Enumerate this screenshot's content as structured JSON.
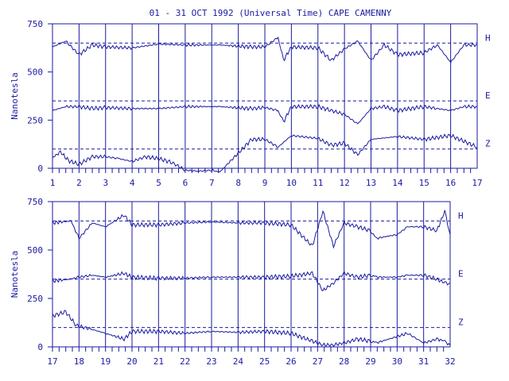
{
  "chart_data": [
    {
      "type": "line",
      "title": "01 - 31 OCT 1992 (Universal Time) CAPE CAMENNY",
      "ylabel": "Nanotesla",
      "xlabel": "",
      "xlim": [
        1,
        17
      ],
      "ylim": [
        0,
        750
      ],
      "y_ticks": [
        0,
        250,
        500,
        750
      ],
      "x_ticks": [
        "1",
        "2",
        "3",
        "4",
        "5",
        "6",
        "7",
        "8",
        "9",
        "10",
        "11",
        "12",
        "13",
        "14",
        "15",
        "16",
        "17"
      ],
      "grid": "vertical day lines",
      "reference_lines": [
        {
          "component": "H",
          "value": 650
        },
        {
          "component": "E",
          "value": 350
        },
        {
          "component": "Z",
          "value": 100
        }
      ],
      "series": [
        {
          "name": "H",
          "x": [
            1,
            1.5,
            2,
            2.5,
            3,
            4,
            5,
            6,
            7.3,
            8.5,
            9,
            9.5,
            9.7,
            10,
            11,
            11.5,
            12,
            12.5,
            13,
            13.5,
            14,
            15,
            15.5,
            16,
            16.5,
            17
          ],
          "y": [
            630,
            660,
            590,
            640,
            630,
            625,
            645,
            640,
            640,
            630,
            630,
            680,
            560,
            630,
            625,
            560,
            620,
            660,
            560,
            640,
            590,
            600,
            640,
            550,
            640,
            640
          ]
        },
        {
          "name": "E",
          "x": [
            1,
            1.5,
            2,
            2.5,
            3,
            4,
            5,
            6,
            7.3,
            8.5,
            9,
            9.5,
            9.7,
            10,
            11,
            11.5,
            12,
            12.5,
            13,
            13.5,
            14,
            15,
            15.5,
            16,
            16.5,
            17
          ],
          "y": [
            300,
            320,
            320,
            310,
            315,
            310,
            310,
            320,
            320,
            310,
            315,
            300,
            240,
            320,
            320,
            300,
            280,
            230,
            310,
            320,
            300,
            320,
            310,
            300,
            320,
            320
          ]
        },
        {
          "name": "Z",
          "x": [
            1,
            1.3,
            1.6,
            2,
            2.5,
            3,
            3.5,
            4,
            4.5,
            5,
            5.5,
            6,
            6.5,
            7,
            7.3,
            8.5,
            9,
            9.5,
            10,
            11,
            11.5,
            12,
            12.5,
            13,
            14,
            15,
            16,
            17
          ],
          "y": [
            55,
            85,
            40,
            20,
            60,
            60,
            50,
            35,
            60,
            50,
            30,
            -10,
            -15,
            -10,
            -20,
            150,
            150,
            110,
            170,
            155,
            120,
            130,
            70,
            150,
            165,
            150,
            170,
            110
          ]
        }
      ]
    },
    {
      "type": "line",
      "title": "",
      "ylabel": "Nanotesla",
      "xlabel": "",
      "xlim": [
        17,
        32
      ],
      "ylim": [
        0,
        750
      ],
      "y_ticks": [
        0,
        250,
        500,
        750
      ],
      "x_ticks": [
        "17",
        "18",
        "19",
        "20",
        "21",
        "22",
        "23",
        "24",
        "25",
        "26",
        "27",
        "28",
        "29",
        "30",
        "31",
        "32"
      ],
      "grid": "vertical day lines",
      "reference_lines": [
        {
          "component": "H",
          "value": 650
        },
        {
          "component": "E",
          "value": 350
        },
        {
          "component": "Z",
          "value": 100
        }
      ],
      "series": [
        {
          "name": "H",
          "x": [
            17,
            17.7,
            18,
            18.5,
            19,
            19.7,
            20,
            21,
            22,
            23,
            24,
            25,
            26,
            26.8,
            27.2,
            27.6,
            28,
            28.5,
            29,
            29.2,
            30,
            30.4,
            31,
            31.5,
            31.8,
            32
          ],
          "y": [
            640,
            650,
            560,
            640,
            620,
            680,
            630,
            630,
            640,
            645,
            640,
            640,
            630,
            520,
            700,
            520,
            640,
            620,
            600,
            560,
            580,
            620,
            620,
            600,
            700,
            580
          ]
        },
        {
          "name": "E",
          "x": [
            17,
            17.7,
            18,
            18.5,
            19,
            19.7,
            20,
            21,
            22,
            23,
            24,
            25,
            26,
            26.8,
            27.2,
            27.6,
            28,
            28.5,
            29,
            29.2,
            30,
            30.4,
            31,
            31.5,
            31.8,
            32
          ],
          "y": [
            340,
            350,
            360,
            370,
            360,
            380,
            360,
            355,
            355,
            360,
            360,
            360,
            365,
            380,
            290,
            330,
            380,
            360,
            370,
            360,
            360,
            370,
            370,
            350,
            330,
            330
          ]
        },
        {
          "name": "Z",
          "x": [
            17,
            17.5,
            17.9,
            18.5,
            19,
            19.7,
            20,
            21,
            22,
            23,
            24,
            25,
            26,
            26.8,
            27.2,
            27.6,
            28,
            28.5,
            29,
            29.2,
            30.4,
            31,
            31.5,
            31.8,
            32
          ],
          "y": [
            160,
            180,
            110,
            90,
            70,
            40,
            80,
            80,
            70,
            80,
            75,
            80,
            70,
            30,
            10,
            10,
            20,
            40,
            30,
            20,
            70,
            20,
            40,
            30,
            10
          ]
        }
      ]
    }
  ]
}
